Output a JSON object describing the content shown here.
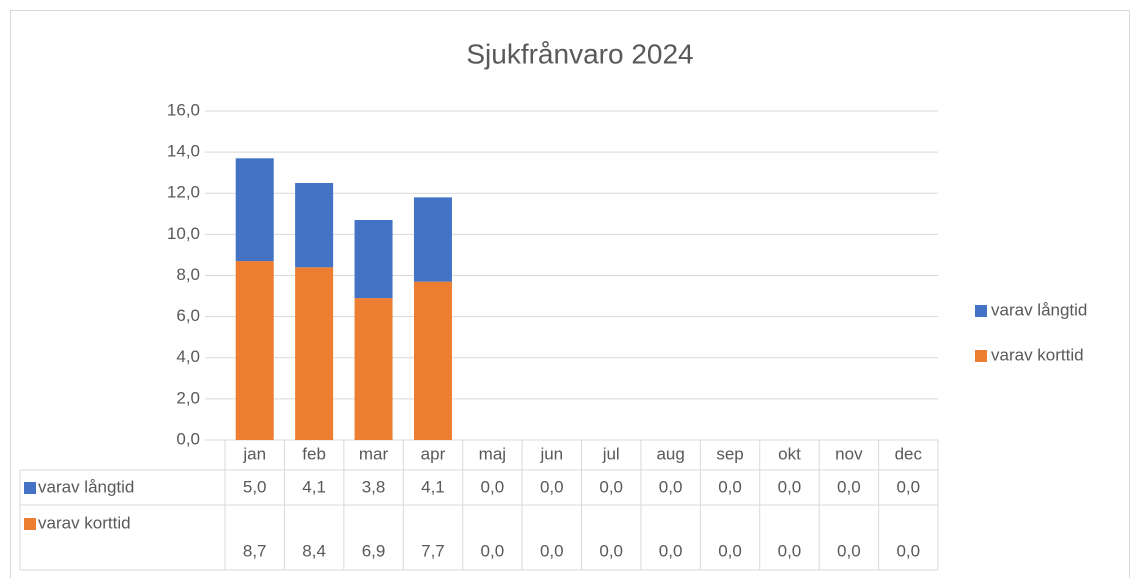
{
  "chart_data": {
    "type": "bar",
    "stacked": true,
    "title": "Sjukfrånvaro 2024",
    "categories": [
      "jan",
      "feb",
      "mar",
      "apr",
      "maj",
      "jun",
      "jul",
      "aug",
      "sep",
      "okt",
      "nov",
      "dec"
    ],
    "series": [
      {
        "name": "varav långtid",
        "color": "#4472c4",
        "values": [
          5.0,
          4.1,
          3.8,
          4.1,
          0,
          0,
          0,
          0,
          0,
          0,
          0,
          0
        ],
        "value_labels": [
          "5,0",
          "4,1",
          "3,8",
          "4,1",
          "0,0",
          "0,0",
          "0,0",
          "0,0",
          "0,0",
          "0,0",
          "0,0",
          "0,0"
        ]
      },
      {
        "name": "varav korttid",
        "color": "#ed7d31",
        "values": [
          8.7,
          8.4,
          6.9,
          7.7,
          0,
          0,
          0,
          0,
          0,
          0,
          0,
          0
        ],
        "value_labels": [
          "8,7",
          "8,4",
          "6,9",
          "7,7",
          "0,0",
          "0,0",
          "0,0",
          "0,0",
          "0,0",
          "0,0",
          "0,0",
          "0,0"
        ]
      }
    ],
    "ylim": [
      0,
      16
    ],
    "yticks": [
      {
        "value": 0,
        "label": "0,0"
      },
      {
        "value": 2,
        "label": "2,0"
      },
      {
        "value": 4,
        "label": "4,0"
      },
      {
        "value": 6,
        "label": "6,0"
      },
      {
        "value": 8,
        "label": "8,0"
      },
      {
        "value": 10,
        "label": "10,0"
      },
      {
        "value": 12,
        "label": "12,0"
      },
      {
        "value": 14,
        "label": "14,0"
      },
      {
        "value": 16,
        "label": "16,0"
      }
    ],
    "grid": true,
    "legend": "right"
  }
}
